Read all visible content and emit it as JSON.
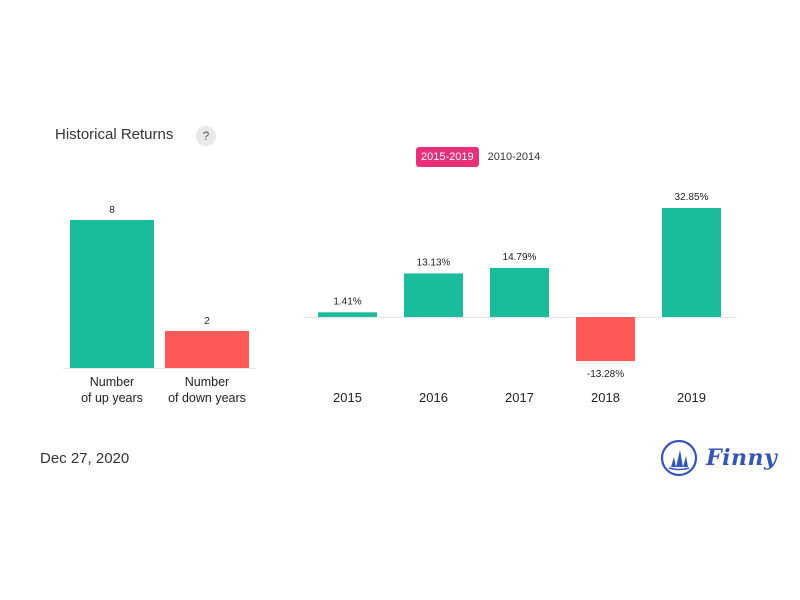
{
  "header": {
    "title": "Historical Returns",
    "help_label": "?"
  },
  "tabs": [
    {
      "label": "2015-2019",
      "active": true
    },
    {
      "label": "2010-2014",
      "active": false
    }
  ],
  "footer": {
    "date": "Dec 27, 2020",
    "brand": "Finny"
  },
  "colors": {
    "positive": "#1abc9c",
    "negative": "#ff5858",
    "accent": "#e8307a",
    "brand": "#3456b8"
  },
  "chart_data": [
    {
      "type": "bar",
      "categories": [
        [
          "Number",
          "of up years"
        ],
        [
          "Number",
          "of down years"
        ]
      ],
      "values": [
        8,
        2
      ],
      "data_labels": [
        "8",
        "2"
      ],
      "ylim": [
        0,
        8
      ]
    },
    {
      "type": "bar",
      "categories": [
        "2015",
        "2016",
        "2017",
        "2018",
        "2019"
      ],
      "values": [
        1.41,
        13.13,
        14.79,
        -13.28,
        32.85
      ],
      "data_labels": [
        "1.41%",
        "13.13%",
        "14.79%",
        "-13.28%",
        "32.85%"
      ],
      "ylim": [
        -13.28,
        32.85
      ]
    }
  ]
}
